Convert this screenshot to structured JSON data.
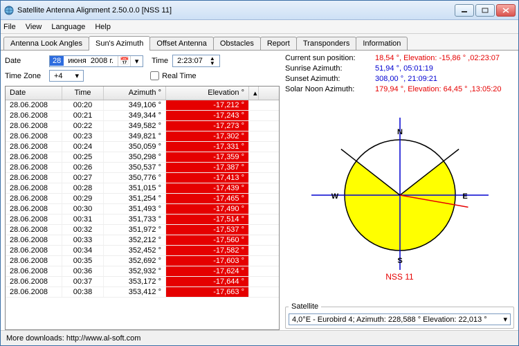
{
  "window": {
    "title": "Satellite Antenna Alignment 2.50.0.0 [NSS 11]"
  },
  "menu": {
    "file": "File",
    "view": "View",
    "language": "Language",
    "help": "Help"
  },
  "tabs": {
    "a": "Antenna Look Angles",
    "b": "Sun's Azimuth",
    "c": "Offset Antenna",
    "d": "Obstacles",
    "e": "Report",
    "f": "Transponders",
    "g": "Information"
  },
  "form": {
    "date_label": "Date",
    "day": "28",
    "month": "июня",
    "year": "2008 г.",
    "time_label": "Time",
    "time": "2:23:07",
    "realtime": "Real Time",
    "tz_label": "Time Zone",
    "tz": "+4"
  },
  "cols": {
    "date": "Date",
    "time": "Time",
    "az": "Azimuth °",
    "el": "Elevation °"
  },
  "rows": [
    {
      "d": "28.06.2008",
      "t": "00:20",
      "a": "349,106 °",
      "e": "-17,212 °"
    },
    {
      "d": "28.06.2008",
      "t": "00:21",
      "a": "349,344 °",
      "e": "-17,243 °"
    },
    {
      "d": "28.06.2008",
      "t": "00:22",
      "a": "349,582 °",
      "e": "-17,273 °"
    },
    {
      "d": "28.06.2008",
      "t": "00:23",
      "a": "349,821 °",
      "e": "-17,302 °"
    },
    {
      "d": "28.06.2008",
      "t": "00:24",
      "a": "350,059 °",
      "e": "-17,331 °"
    },
    {
      "d": "28.06.2008",
      "t": "00:25",
      "a": "350,298 °",
      "e": "-17,359 °"
    },
    {
      "d": "28.06.2008",
      "t": "00:26",
      "a": "350,537 °",
      "e": "-17,387 °"
    },
    {
      "d": "28.06.2008",
      "t": "00:27",
      "a": "350,776 °",
      "e": "-17,413 °"
    },
    {
      "d": "28.06.2008",
      "t": "00:28",
      "a": "351,015 °",
      "e": "-17,439 °"
    },
    {
      "d": "28.06.2008",
      "t": "00:29",
      "a": "351,254 °",
      "e": "-17,465 °"
    },
    {
      "d": "28.06.2008",
      "t": "00:30",
      "a": "351,493 °",
      "e": "-17,490 °"
    },
    {
      "d": "28.06.2008",
      "t": "00:31",
      "a": "351,733 °",
      "e": "-17,514 °"
    },
    {
      "d": "28.06.2008",
      "t": "00:32",
      "a": "351,972 °",
      "e": "-17,537 °"
    },
    {
      "d": "28.06.2008",
      "t": "00:33",
      "a": "352,212 °",
      "e": "-17,560 °"
    },
    {
      "d": "28.06.2008",
      "t": "00:34",
      "a": "352,452 °",
      "e": "-17,582 °"
    },
    {
      "d": "28.06.2008",
      "t": "00:35",
      "a": "352,692 °",
      "e": "-17,603 °"
    },
    {
      "d": "28.06.2008",
      "t": "00:36",
      "a": "352,932 °",
      "e": "-17,624 °"
    },
    {
      "d": "28.06.2008",
      "t": "00:37",
      "a": "353,172 °",
      "e": "-17,644 °"
    },
    {
      "d": "28.06.2008",
      "t": "00:38",
      "a": "353,412 °",
      "e": "-17,663 °"
    }
  ],
  "info": {
    "k1": "Current sun position:",
    "v1": "18,54 °, Elevation: -15,86 ° ,02:23:07",
    "c1": "#e50000",
    "k2": "Sunrise Azimuth:",
    "v2": "51,94 °, 05:01:19",
    "c2": "#0000d0",
    "k3": "Sunset Azimuth:",
    "v3": "308,00 °, 21:09:21",
    "c3": "#0000d0",
    "k4": "Solar Noon Azimuth:",
    "v4": "179,94 °, Elevation: 64,45 ° ,13:05:20",
    "c4": "#e50000"
  },
  "compass": {
    "n": "N",
    "s": "S",
    "e": "E",
    "w": "W",
    "sat": "NSS 11",
    "radius": 80,
    "sun_angle_deg": 100,
    "rise_deg": 52,
    "set_deg": 308,
    "circle_stroke": "#000",
    "axis_color": "#0000d0",
    "sun_line": "#e50000",
    "fill": "#ffff00",
    "tick": "#000"
  },
  "satgroup": {
    "legend": "Satellite",
    "selected": "4,0°E - Eurobird 4;  Azimuth: 228,588 ° Elevation: 22,013 °"
  },
  "status": {
    "text": "More downloads: http://www.al-soft.com"
  }
}
